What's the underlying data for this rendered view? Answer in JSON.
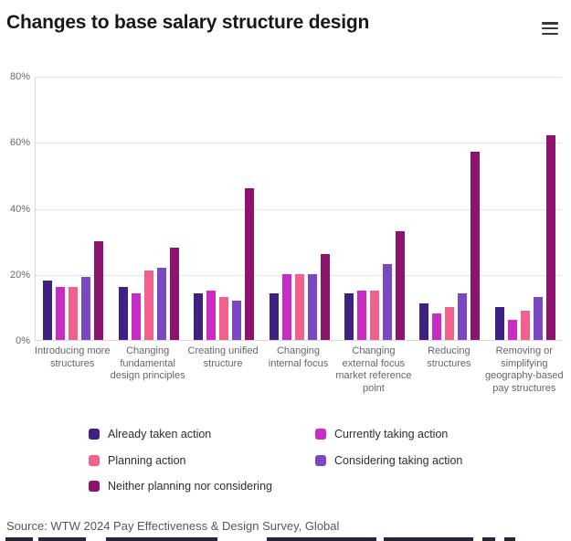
{
  "header": {
    "title": "Changes to base salary structure design"
  },
  "chart_data": {
    "type": "bar",
    "title": "Changes to base salary structure design",
    "categories": [
      "Introducing more structures",
      "Changing fundamental design principles",
      "Creating unified structure",
      "Changing internal focus",
      "Changing external focus market reference point",
      "Reducing structures",
      "Removing or simplifying geography-based pay structures"
    ],
    "series": [
      {
        "name": "Already taken action",
        "color": "#3e2181",
        "values": [
          18,
          16,
          14,
          14,
          14,
          11,
          10
        ]
      },
      {
        "name": "Currently taking action",
        "color": "#c92cc4",
        "values": [
          16,
          14,
          15,
          20,
          15,
          8,
          6
        ]
      },
      {
        "name": "Planning action",
        "color": "#f0618d",
        "values": [
          16,
          21,
          13,
          20,
          15,
          10,
          9
        ]
      },
      {
        "name": "Considering taking action",
        "color": "#7b48c4",
        "values": [
          19,
          22,
          12,
          20,
          23,
          14,
          13
        ]
      },
      {
        "name": "Neither planning nor considering",
        "color": "#8c146e",
        "values": [
          30,
          28,
          46,
          26,
          33,
          57,
          62
        ]
      }
    ],
    "ylim": [
      0,
      80
    ],
    "yticks": [
      "0%",
      "20%",
      "40%",
      "60%",
      "80%"
    ],
    "grid": true,
    "legend_position": "bottom"
  },
  "source": {
    "text": "Source: WTW 2024 Pay Effectiveness & Design Survey, Global"
  },
  "colors": {
    "grid": "#e6e6e6",
    "axis": "#d8d8d8",
    "tick_label": "#666a6e",
    "category_label": "#63666a",
    "title": "#17171d"
  }
}
